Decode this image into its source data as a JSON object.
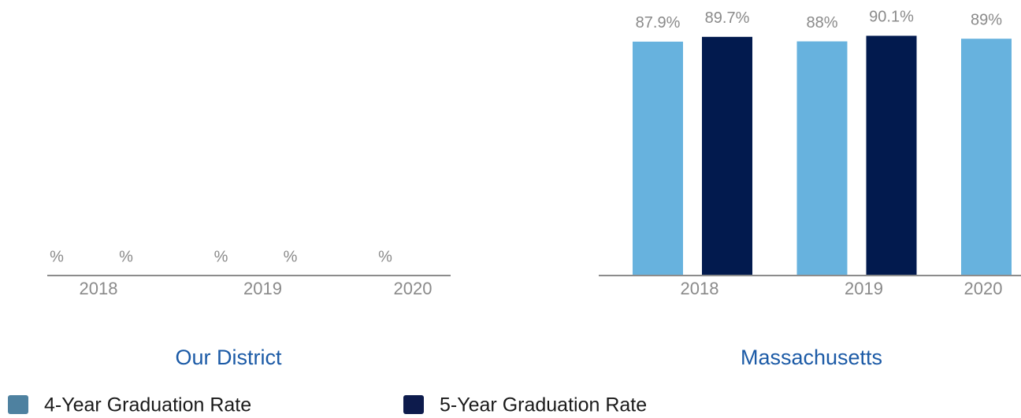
{
  "chart_data": [
    {
      "type": "bar",
      "title": "Our District",
      "categories": [
        "2018",
        "2019",
        "2020"
      ],
      "series": [
        {
          "color": "#67b2de",
          "values": [
            null,
            null,
            null
          ],
          "value_labels": [
            "%",
            "%",
            "%"
          ]
        },
        {
          "color": "#021a4e",
          "values": [
            null,
            null,
            null
          ],
          "value_labels": [
            "%",
            "%",
            null
          ]
        }
      ],
      "ylim": [
        0,
        100
      ]
    },
    {
      "type": "bar",
      "title": "Massachusetts",
      "categories": [
        "2018",
        "2019",
        "2020"
      ],
      "series": [
        {
          "color": "#67b2de",
          "values": [
            87.9,
            88,
            89
          ],
          "value_labels": [
            "87.9%",
            "88%",
            "89%"
          ]
        },
        {
          "color": "#021a4e",
          "values": [
            89.7,
            90.1,
            null
          ],
          "value_labels": [
            "89.7%",
            "90.1%",
            null
          ]
        }
      ],
      "ylim": [
        0,
        100
      ]
    }
  ],
  "legend": {
    "items": [
      {
        "label": "4-Year Graduation Rate",
        "color": "#4e81a0"
      },
      {
        "label": "5-Year Graduation Rate",
        "color": "#0d1b4c"
      }
    ]
  }
}
